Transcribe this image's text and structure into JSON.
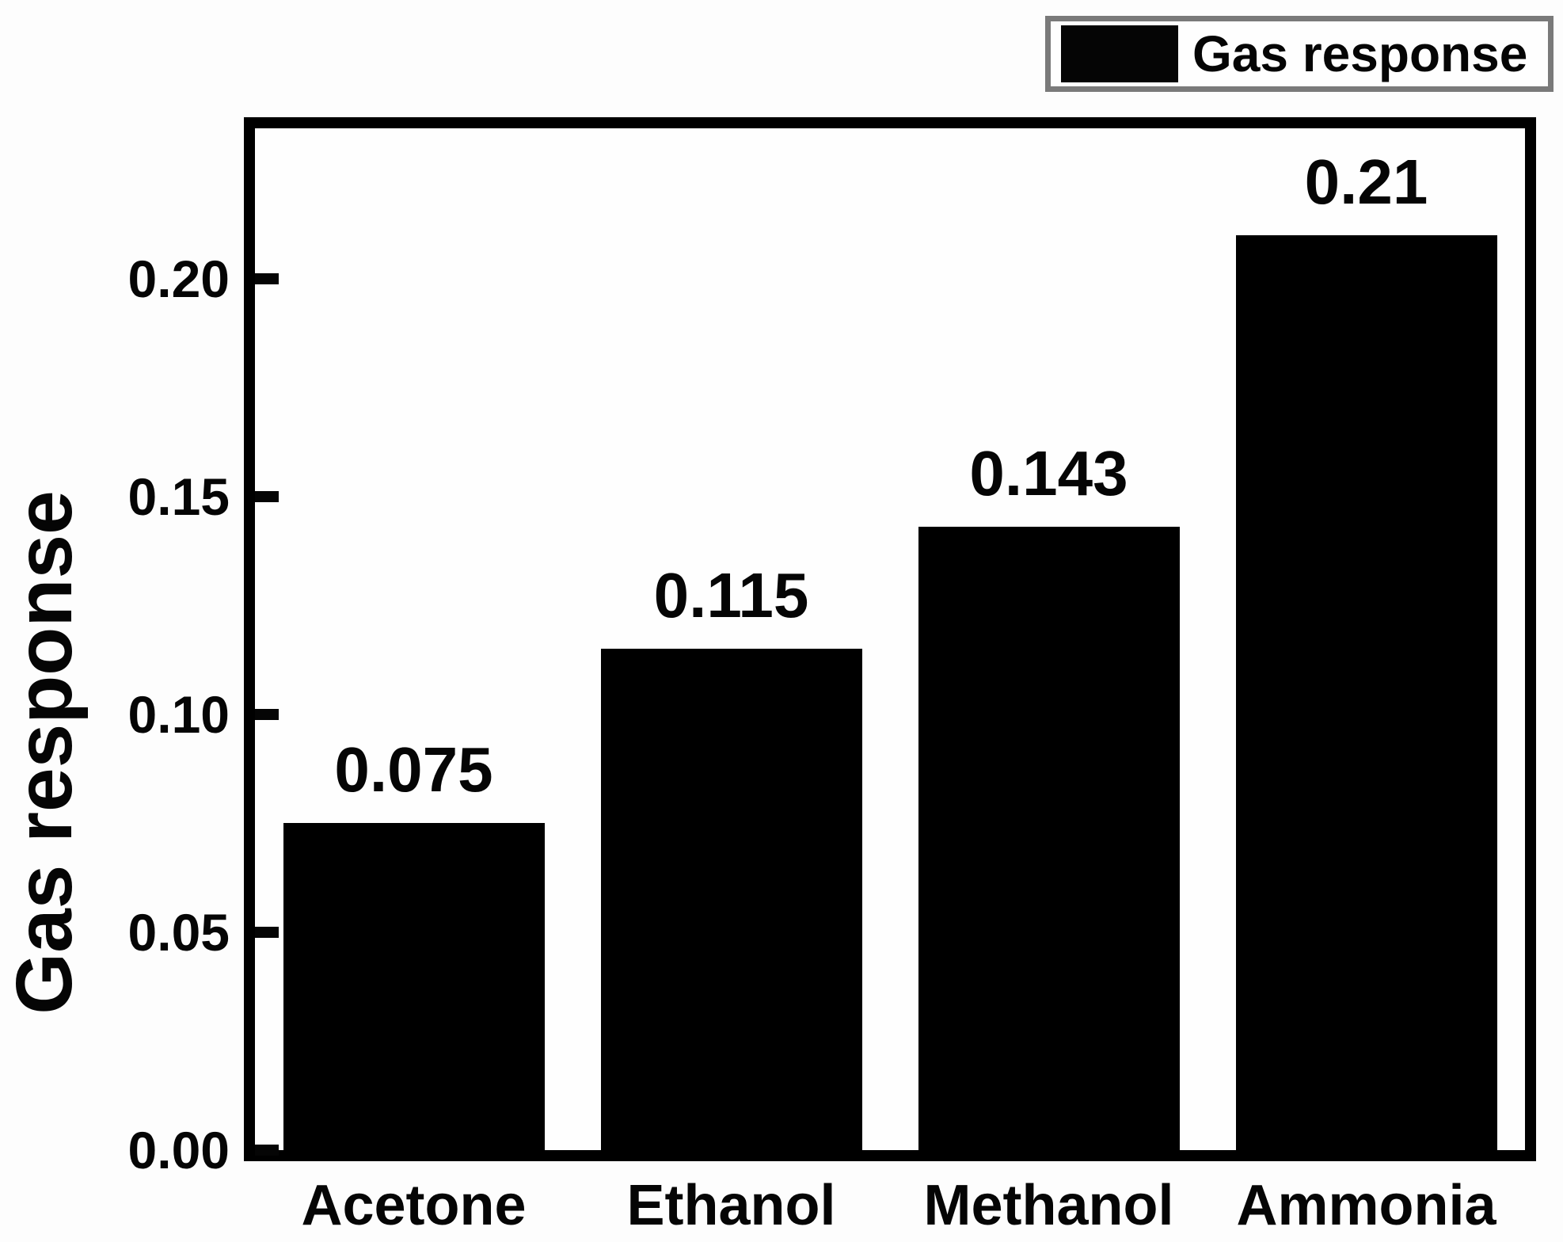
{
  "legend": {
    "label": "Gas response",
    "swatch_color": "#000000",
    "border_color": "#7a7a7a"
  },
  "y_axis": {
    "title": "Gas response",
    "ticks": [
      {
        "label": "0.00",
        "value": 0.0
      },
      {
        "label": "0.05",
        "value": 0.05
      },
      {
        "label": "0.10",
        "value": 0.1
      },
      {
        "label": "0.15",
        "value": 0.15
      },
      {
        "label": "0.20",
        "value": 0.2
      }
    ]
  },
  "chart_data": {
    "type": "bar",
    "title": "",
    "categories": [
      "Acetone",
      "Ethanol",
      "Methanol",
      "Ammonia"
    ],
    "values": [
      0.075,
      0.115,
      0.143,
      0.21
    ],
    "value_labels": [
      "0.075",
      "0.115",
      "0.143",
      "0.21"
    ],
    "series_name": "Gas response",
    "xlabel": "",
    "ylabel": "Gas response",
    "ylim": [
      0,
      0.235
    ],
    "yticks": [
      0.0,
      0.05,
      0.1,
      0.15,
      0.2
    ],
    "grid": false,
    "legend_position": "top-right-above-plot",
    "bar_color": "#000000",
    "frame_color": "#000000",
    "background_color": "#ffffff"
  }
}
